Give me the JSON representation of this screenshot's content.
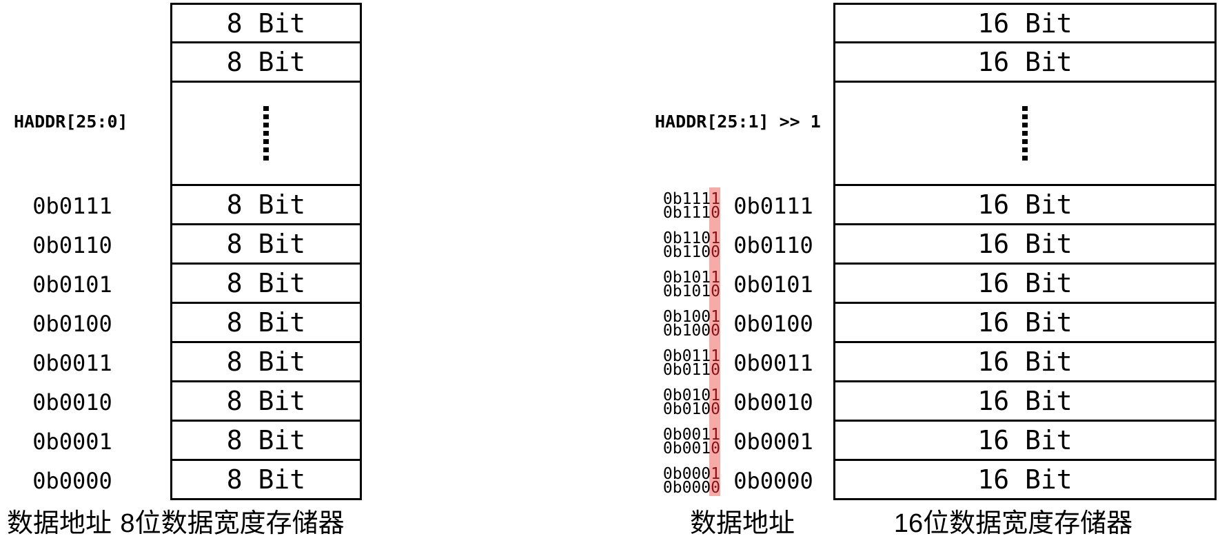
{
  "colors": {
    "highlight_bg": "#f7aba8",
    "highlight_digit": "#8b1016",
    "line": "#000000"
  },
  "left_diagram": {
    "haddr_label": "HADDR[25:0]",
    "cells_top": [
      "8 Bit",
      "8 Bit"
    ],
    "rows": [
      {
        "address": "0b0111",
        "cell": "8 Bit"
      },
      {
        "address": "0b0110",
        "cell": "8 Bit"
      },
      {
        "address": "0b0101",
        "cell": "8 Bit"
      },
      {
        "address": "0b0100",
        "cell": "8 Bit"
      },
      {
        "address": "0b0011",
        "cell": "8 Bit"
      },
      {
        "address": "0b0010",
        "cell": "8 Bit"
      },
      {
        "address": "0b0001",
        "cell": "8 Bit"
      },
      {
        "address": "0b0000",
        "cell": "8 Bit"
      }
    ],
    "address_column_label": "数据地址",
    "memory_label": "8位数据宽度存储器"
  },
  "right_diagram": {
    "haddr_label": "HADDR[25:1] >> 1",
    "cells_top": [
      "16 Bit",
      "16 Bit"
    ],
    "rows": [
      {
        "byte_high_prefix": "0b111",
        "byte_high_last": "1",
        "byte_low_prefix": "0b111",
        "byte_low_last": "0",
        "address": "0b0111",
        "cell": "16 Bit"
      },
      {
        "byte_high_prefix": "0b110",
        "byte_high_last": "1",
        "byte_low_prefix": "0b110",
        "byte_low_last": "0",
        "address": "0b0110",
        "cell": "16 Bit"
      },
      {
        "byte_high_prefix": "0b101",
        "byte_high_last": "1",
        "byte_low_prefix": "0b101",
        "byte_low_last": "0",
        "address": "0b0101",
        "cell": "16 Bit"
      },
      {
        "byte_high_prefix": "0b100",
        "byte_high_last": "1",
        "byte_low_prefix": "0b100",
        "byte_low_last": "0",
        "address": "0b0100",
        "cell": "16 Bit"
      },
      {
        "byte_high_prefix": "0b011",
        "byte_high_last": "1",
        "byte_low_prefix": "0b011",
        "byte_low_last": "0",
        "address": "0b0011",
        "cell": "16 Bit"
      },
      {
        "byte_high_prefix": "0b010",
        "byte_high_last": "1",
        "byte_low_prefix": "0b010",
        "byte_low_last": "0",
        "address": "0b0010",
        "cell": "16 Bit"
      },
      {
        "byte_high_prefix": "0b001",
        "byte_high_last": "1",
        "byte_low_prefix": "0b001",
        "byte_low_last": "0",
        "address": "0b0001",
        "cell": "16 Bit"
      },
      {
        "byte_high_prefix": "0b000",
        "byte_high_last": "1",
        "byte_low_prefix": "0b000",
        "byte_low_last": "0",
        "address": "0b0000",
        "cell": "16 Bit"
      }
    ],
    "address_column_label": "数据地址",
    "memory_label": "16位数据宽度存储器"
  }
}
